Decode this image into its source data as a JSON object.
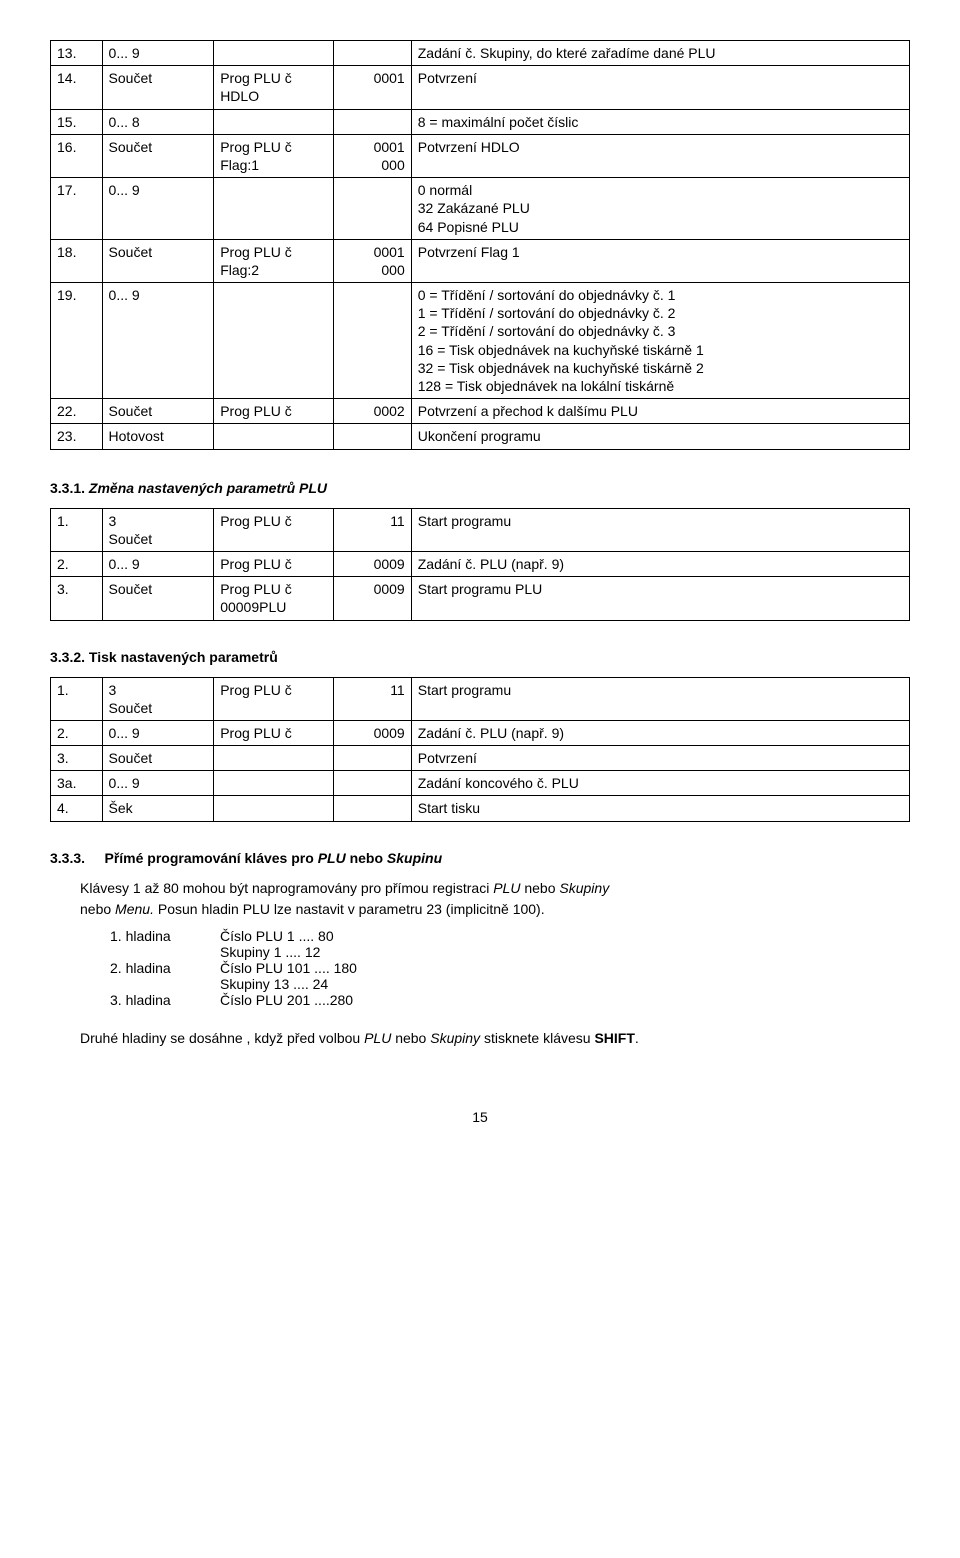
{
  "table1": {
    "rows": [
      [
        "13.",
        "0... 9",
        "",
        "",
        "Zadání č. Skupiny, do které zařadíme dané PLU",
        ""
      ],
      [
        "14.",
        "Součet",
        "Prog PLU č\nHDLO",
        "0001",
        "Potvrzení",
        ""
      ],
      [
        "15.",
        "0... 8",
        "",
        "",
        "8 = maximální počet číslic",
        ""
      ],
      [
        "16.",
        "Součet",
        "Prog PLU č\nFlag:1",
        "0001\n000",
        "Potvrzení HDLO",
        ""
      ],
      [
        "17.",
        "0... 9",
        "",
        "",
        "0   normál\n32   Zakázané PLU\n64   Popisné PLU",
        ""
      ],
      [
        "18.",
        "Součet",
        "Prog PLU č\nFlag:2",
        "0001\n000",
        "Potvrzení Flag 1",
        ""
      ],
      [
        "19.",
        "0... 9",
        "",
        "",
        "0   =   Třídění / sortování do objednávky č. 1\n1   =   Třídění / sortování do objednávky č. 2\n2   =   Třídění / sortování do objednávky č. 3\n16   =   Tisk objednávek na kuchyňské tiskárně 1\n32   =   Tisk objednávek na kuchyňské tiskárně 2\n128   =   Tisk objednávek na lokální tiskárně",
        ""
      ],
      [
        "22.",
        "Součet",
        "Prog PLU č",
        "0002",
        "Potvrzení a přechod k dalšímu PLU",
        ""
      ],
      [
        "23.",
        "Hotovost",
        "",
        "",
        "Ukončení programu",
        ""
      ]
    ]
  },
  "sec331": {
    "num": "3.3.1.",
    "title": "Změna nastavených parametrů PLU"
  },
  "table2": {
    "rows": [
      [
        "1.",
        "3\nSoučet",
        "Prog PLU č",
        "11",
        "Start programu"
      ],
      [
        "2.",
        "0... 9",
        "Prog PLU č",
        "0009",
        "Zadání č. PLU (např. 9)"
      ],
      [
        "3.",
        "Součet",
        "Prog PLU č\n00009PLU",
        "0009",
        "Start programu PLU"
      ]
    ]
  },
  "sec332": {
    "num": "3.3.2.",
    "title": "Tisk nastavených parametrů"
  },
  "table3": {
    "rows": [
      [
        "1.",
        "3\nSoučet",
        "Prog PLU č",
        "11",
        "Start programu"
      ],
      [
        "2.",
        "0... 9",
        "Prog PLU č",
        "0009",
        "Zadání č. PLU (např. 9)"
      ],
      [
        "3.",
        "Součet",
        "",
        "",
        "Potvrzení"
      ],
      [
        "3a.",
        "0... 9",
        "",
        "",
        "Zadání koncového č. PLU"
      ],
      [
        "4.",
        "Šek",
        "",
        "",
        "Start tisku"
      ]
    ]
  },
  "sec333": {
    "num": "3.3.3.",
    "title_pre": "Přímé programování kláves pro  ",
    "title_it1": "PLU",
    "title_mid": "   nebo ",
    "title_it2": "Skupinu"
  },
  "para1": {
    "l1a": "Klávesy 1 až 80 mohou být naprogramovány pro přímou registraci  ",
    "l1it1": "PLU",
    "l1b": "  nebo ",
    "l1it2": "Skupiny",
    "l2a": "nebo ",
    "l2it": "Menu.",
    "l2b": " Posun hladin PLU lze nastavit v parametru 23 (implicitně 100)."
  },
  "hladiny": [
    {
      "label": "1. hladina",
      "a": "Číslo PLU  1 .... 80",
      "b": "Skupiny    1 ....  12"
    },
    {
      "label": "2. hladina",
      "a": "Číslo PLU 101 .... 180",
      "b": "Skupiny   13 ....  24"
    },
    {
      "label": "3. hladina",
      "a": "Číslo PLU 201 ....280",
      "b": ""
    }
  ],
  "para2": {
    "a": "Druhé hladiny se dosáhne , když před volbou ",
    "it1": "PLU",
    "mid": "  nebo ",
    "it2": "Skupiny ",
    "b": "stisknete klávesu ",
    "bold": "SHIFT",
    "end": "."
  },
  "pagenum": "15"
}
